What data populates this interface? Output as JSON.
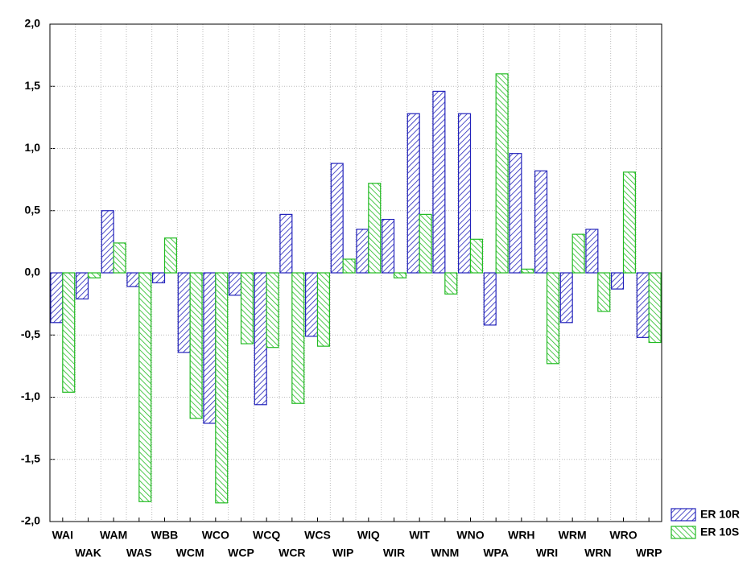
{
  "chart_data": {
    "type": "bar",
    "categories": [
      "WAI",
      "WAK",
      "WAM",
      "WAS",
      "WBB",
      "WCM",
      "WCO",
      "WCP",
      "WCQ",
      "WCR",
      "WCS",
      "WIP",
      "WIQ",
      "WIR",
      "WIT",
      "WNM",
      "WNO",
      "WPA",
      "WRH",
      "WRI",
      "WRM",
      "WRN",
      "WRO",
      "WRP"
    ],
    "series": [
      {
        "name": "ER 10R",
        "color": "#2222bb",
        "values": [
          -0.4,
          -0.21,
          0.5,
          -0.11,
          -0.08,
          -0.64,
          -1.21,
          -0.18,
          -1.06,
          0.47,
          -0.51,
          0.88,
          0.35,
          0.43,
          1.28,
          1.46,
          1.28,
          -0.42,
          0.96,
          0.82,
          -0.4,
          0.35,
          -0.13,
          -0.52
        ]
      },
      {
        "name": "ER 10S",
        "color": "#22bb22",
        "values": [
          -0.96,
          -0.04,
          0.24,
          -1.84,
          0.28,
          -1.17,
          -1.85,
          -0.57,
          -0.6,
          -1.05,
          -0.59,
          0.11,
          0.72,
          -0.04,
          0.47,
          -0.17,
          0.27,
          1.6,
          0.03,
          -0.73,
          0.31,
          -0.31,
          0.81,
          -0.56
        ]
      }
    ],
    "ylim": [
      -2.0,
      2.0
    ],
    "yticks": [
      {
        "value": -2.0,
        "label": "-2,0"
      },
      {
        "value": -1.5,
        "label": "-1,5"
      },
      {
        "value": -1.0,
        "label": "-1,0"
      },
      {
        "value": -0.5,
        "label": "-0,5"
      },
      {
        "value": 0.0,
        "label": "0,0"
      },
      {
        "value": 0.5,
        "label": "0,5"
      },
      {
        "value": 1.0,
        "label": "1,0"
      },
      {
        "value": 1.5,
        "label": "1,5"
      },
      {
        "value": 2.0,
        "label": "2,0"
      }
    ],
    "grid": true,
    "legend": "bottom-right"
  }
}
